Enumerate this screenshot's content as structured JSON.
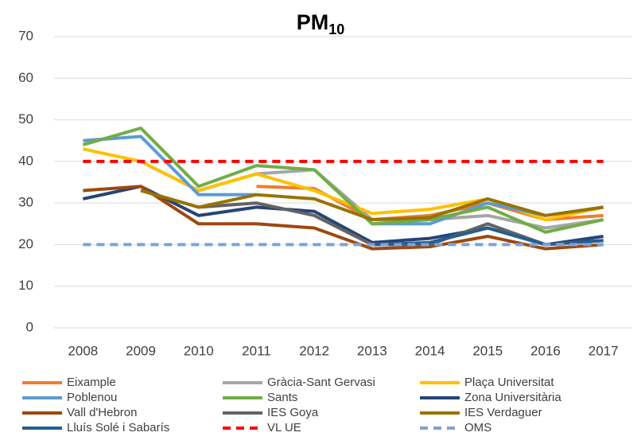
{
  "chart_data": {
    "type": "line",
    "title": "PM",
    "title_subscript": "10",
    "categories": [
      "2008",
      "2009",
      "2010",
      "2011",
      "2012",
      "2013",
      "2014",
      "2015",
      "2016",
      "2017"
    ],
    "ylim": [
      0,
      70
    ],
    "yticks": [
      0,
      10,
      20,
      30,
      40,
      50,
      60,
      70
    ],
    "grid": true,
    "legend": "bottom",
    "series": [
      {
        "name": "Eixample",
        "color": "#ED7D31",
        "values": [
          null,
          null,
          null,
          34,
          33.5,
          26,
          27,
          30,
          26,
          27
        ]
      },
      {
        "name": "Gràcia-Sant Gervasi",
        "color": "#A5A5A5",
        "values": [
          null,
          40,
          33,
          37,
          38,
          26,
          26,
          27,
          24,
          26
        ]
      },
      {
        "name": "Plaça Universitat",
        "color": "#FFC000",
        "values": [
          43,
          40,
          33,
          37,
          33,
          27.5,
          28.5,
          31,
          26,
          29
        ]
      },
      {
        "name": "Poblenou",
        "color": "#5B9BD5",
        "values": [
          45,
          46,
          32,
          32,
          null,
          25,
          25,
          30,
          27,
          29
        ]
      },
      {
        "name": "Sants",
        "color": "#70AD47",
        "values": [
          44,
          48,
          34,
          39,
          38,
          25,
          26,
          29,
          23,
          26
        ]
      },
      {
        "name": "Zona Universitària",
        "color": "#264478",
        "values": [
          31,
          34,
          27,
          29,
          28,
          20.5,
          21.5,
          24,
          20,
          22
        ]
      },
      {
        "name": "Vall d'Hebron",
        "color": "#9E480E",
        "values": [
          33,
          34,
          25,
          25,
          24,
          19,
          19.5,
          22,
          19,
          20
        ]
      },
      {
        "name": "IES Goya",
        "color": "#636363",
        "values": [
          null,
          33,
          29,
          30,
          27,
          20,
          20,
          25,
          20,
          21
        ]
      },
      {
        "name": "IES Verdaguer",
        "color": "#997300",
        "values": [
          null,
          33,
          29,
          32,
          31,
          26,
          26.5,
          31,
          27,
          29
        ]
      },
      {
        "name": "Lluís Solé i Sabarís",
        "color": "#255E91",
        "values": [
          null,
          null,
          null,
          null,
          null,
          20,
          20.5,
          24,
          20,
          21
        ]
      },
      {
        "name": "VL UE",
        "color": "#FF0000",
        "dashed": true,
        "values": [
          40,
          40,
          40,
          40,
          40,
          40,
          40,
          40,
          40,
          40
        ]
      },
      {
        "name": "OMS",
        "color": "#7CA3DB",
        "dashed": true,
        "values": [
          20,
          20,
          20,
          20,
          20,
          20,
          20,
          20,
          20,
          20
        ]
      }
    ]
  }
}
